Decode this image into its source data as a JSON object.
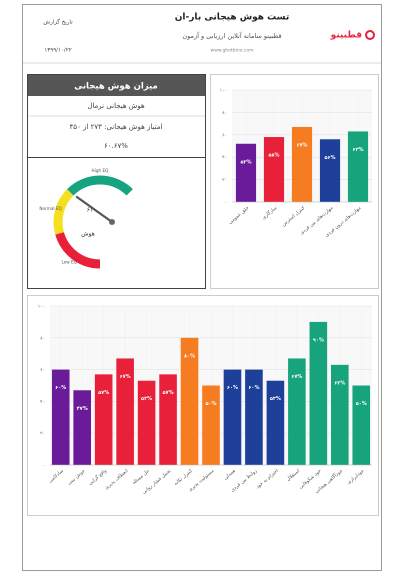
{
  "header": {
    "title": "تست هوش هیجانی بار-ان",
    "subtitle": "قطبینو سامانه آنلاین ارزیابی و آزمون",
    "url": "www.ghotbino.com",
    "logo": "قطبینو",
    "date_label": "تاریخ گزارش",
    "date": "۱۳۹۹/۱۰/۲۲"
  },
  "summary": {
    "title": "میزان هوش هیجانی",
    "level": "هوش هیجانی نرمال",
    "score": "امتیاز هوش هیجانی: ۲۷۳ از ۴۵۰",
    "percent": "۶۰.۶۷%"
  },
  "gauge": {
    "range": [
      0,
      100
    ],
    "value": 61,
    "value_label": "۶۱",
    "center_label": "هوش",
    "zones": [
      {
        "to": 33,
        "color": "#e8203a",
        "label": "Low EQ"
      },
      {
        "to": 60,
        "color": "#f5df1e",
        "label": "Normal EQ"
      },
      {
        "to": 100,
        "color": "#16a37f",
        "label": "High EQ"
      }
    ]
  },
  "chart_data": [
    {
      "type": "bar",
      "categories": [
        "خلق عمومی",
        "سازگاری",
        "کنترل استرس",
        "مهارت‌های بین فردی",
        "مهارت‌های درون فردی"
      ],
      "values": [
        52,
        58,
        67,
        56,
        63
      ],
      "value_labels": [
        "۵۲%",
        "۵۸%",
        "۶۷%",
        "۵۶%",
        "۶۳%"
      ],
      "colors": [
        "#6a1b9a",
        "#e8203a",
        "#f57c20",
        "#1e3f9a",
        "#17a37c"
      ],
      "ylim": [
        0,
        100
      ],
      "yticks": [
        {
          "value": 0,
          "label": "۰"
        },
        {
          "value": 20,
          "label": "۲۰"
        },
        {
          "value": 40,
          "label": "۴۰"
        },
        {
          "value": 60,
          "label": "۶۰"
        },
        {
          "value": 80,
          "label": "۸۰"
        },
        {
          "value": 100,
          "label": "۱۰۰"
        }
      ],
      "grid": true
    },
    {
      "type": "bar",
      "categories": [
        "شادکامی",
        "خوش بینی",
        "واقع گرایی",
        "انعطاف پذیری",
        "حل مسئله",
        "تحمل فشار روانی",
        "کنترل تکانه",
        "مسئولیت پذیری",
        "همدلی",
        "روابط بین فردی",
        "احترام به خود",
        "استقلال",
        "خود شکوفایی",
        "خودآگاهی هیجانی",
        "خودابرازی"
      ],
      "values": [
        60,
        47,
        57,
        67,
        53,
        57,
        80,
        50,
        60,
        60,
        53,
        67,
        90,
        63,
        50
      ],
      "value_labels": [
        "۶۰%",
        "۴۷%",
        "۵۷%",
        "۶۷%",
        "۵۳%",
        "۵۷%",
        "۸۰%",
        "۵۰%",
        "۶۰%",
        "۶۰%",
        "۵۳%",
        "۶۷%",
        "۹۰%",
        "۶۳%",
        "۵۰%"
      ],
      "colors": [
        "#6a1b9a",
        "#6a1b9a",
        "#e8203a",
        "#e8203a",
        "#e8203a",
        "#e8203a",
        "#f57c20",
        "#f57c20",
        "#1e3f9a",
        "#1e3f9a",
        "#1e3f9a",
        "#17a37c",
        "#17a37c",
        "#17a37c",
        "#17a37c"
      ],
      "ylim": [
        0,
        100
      ],
      "yticks": [
        {
          "value": 0,
          "label": "۰"
        },
        {
          "value": 20,
          "label": "۲۰"
        },
        {
          "value": 40,
          "label": "۴۰"
        },
        {
          "value": 60,
          "label": "۶۰"
        },
        {
          "value": 80,
          "label": "۸۰"
        },
        {
          "value": 100,
          "label": "۱۰۰"
        }
      ],
      "grid": true
    }
  ]
}
